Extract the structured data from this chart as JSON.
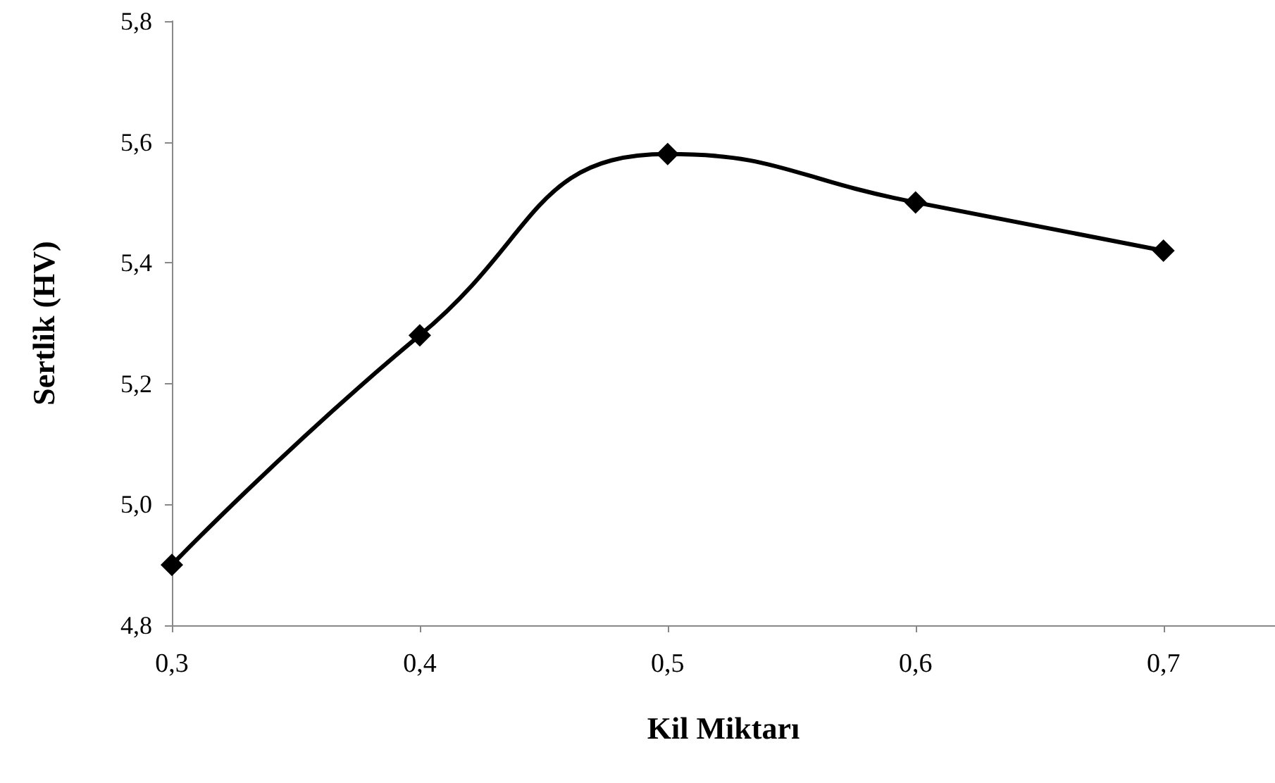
{
  "chart_data": {
    "type": "line",
    "xlabel": "Kil Miktarı",
    "ylabel": "Sertlik (HV)",
    "x": [
      0.3,
      0.4,
      0.5,
      0.6,
      0.7
    ],
    "series": [
      {
        "color": "#000000",
        "values": [
          4.9,
          5.28,
          5.58,
          5.5,
          5.42
        ]
      }
    ],
    "xlim": [
      0.3,
      0.745
    ],
    "xticks": [
      {
        "value": 0.3,
        "label": "0,3"
      },
      {
        "value": 0.4,
        "label": "0,4"
      },
      {
        "value": 0.5,
        "label": "0,5"
      },
      {
        "value": 0.6,
        "label": "0,6"
      },
      {
        "value": 0.7,
        "label": "0,7"
      }
    ],
    "ylim": [
      4.8,
      5.8
    ],
    "yticks": [
      {
        "value": 4.8,
        "label": "4,8"
      },
      {
        "value": 5.0,
        "label": "5,0"
      },
      {
        "value": 5.2,
        "label": "5,2"
      },
      {
        "value": 5.4,
        "label": "5,4"
      },
      {
        "value": 5.6,
        "label": "5,6"
      },
      {
        "value": 5.8,
        "label": "5,8"
      }
    ],
    "grid": false,
    "marker": "diamond",
    "line_style": "solid"
  }
}
